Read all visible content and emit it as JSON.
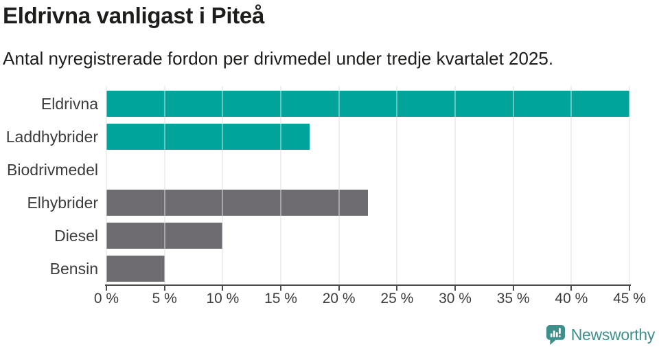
{
  "header": {
    "title": "Eldrivna vanligast i Piteå",
    "subtitle": "Antal nyregistrerade fordon per drivmedel under tredje kvartalet 2025."
  },
  "chart_data": {
    "type": "bar",
    "orientation": "horizontal",
    "title": "Eldrivna vanligast i Piteå",
    "categories": [
      "Eldrivna",
      "Laddhybrider",
      "Biodrivmedel",
      "Elhybrider",
      "Diesel",
      "Bensin"
    ],
    "values": [
      45,
      17.5,
      0,
      22.5,
      10,
      5
    ],
    "unit": "%",
    "bar_colors": [
      "#00A49B",
      "#00A49B",
      "#6E6C71",
      "#6E6C71",
      "#6E6C71",
      "#6E6C71"
    ],
    "highlight_color": "#00A49B",
    "default_color": "#6E6C71",
    "xlim": [
      0,
      45
    ],
    "xticks": [
      0,
      5,
      10,
      15,
      20,
      25,
      30,
      35,
      40,
      45
    ],
    "xtick_labels": [
      "0 %",
      "5 %",
      "10 %",
      "15 %",
      "20 %",
      "25 %",
      "30 %",
      "35 %",
      "40 %",
      "45 %"
    ],
    "grid": true,
    "grid_color": "#E4E4E4",
    "axis_color": "#4C4C4C",
    "xlabel": "",
    "ylabel": ""
  },
  "footer": {
    "brand": "Newsworthy",
    "brand_color": "#3E908D",
    "logo_icon": "bar-chart-speech-bubble-icon"
  }
}
